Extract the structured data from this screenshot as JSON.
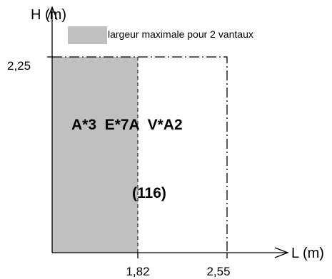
{
  "diagram": {
    "y_axis_label": "H (m)",
    "x_axis_label": "L (m)",
    "y_tick": "2,25",
    "x_ticks": [
      "1,82",
      "2,55"
    ],
    "legend_label": "largeur maximale pour 2 vantaux",
    "classification": "A*3  E*7A  V*A2",
    "reference": "(116)",
    "colors": {
      "fill": "#c0c0c0",
      "line": "#000000"
    }
  }
}
